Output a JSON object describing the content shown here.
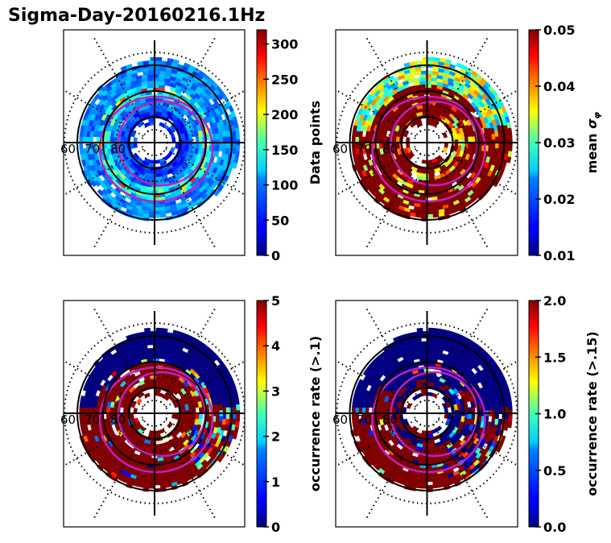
{
  "figure": {
    "title": "Sigma-Day-20160216.1Hz"
  },
  "chart_data": [
    {
      "type": "heatmap",
      "projection": "polar (magnetic latitude / MLT)",
      "panel": "top-left",
      "title": "",
      "colorbar_label": "Data points",
      "colormap": "jet",
      "clim": [
        0,
        320
      ],
      "colorbar_ticks": [
        "0",
        "50",
        "100",
        "150",
        "200",
        "250",
        "300"
      ],
      "colorbar_tick_values": [
        0,
        50,
        100,
        150,
        200,
        250,
        300
      ],
      "latitude_labels": [
        "60",
        "70",
        "80"
      ],
      "latitude_circles_solid": [
        60,
        70,
        80
      ],
      "dominant_description": "mostly blue/cyan (50-150) with yellow/orange ring near 70-75 lat",
      "typical_value_range": [
        20,
        260
      ]
    },
    {
      "type": "heatmap",
      "projection": "polar (magnetic latitude / MLT)",
      "panel": "top-right",
      "colorbar_label": "mean σ_φ",
      "colorbar_label_main": "mean ",
      "colorbar_label_symbol": "σ",
      "colorbar_label_sub": "φ",
      "colormap": "jet",
      "clim": [
        0.01,
        0.05
      ],
      "colorbar_ticks": [
        "0.01",
        "0.02",
        "0.03",
        "0.04",
        "0.05"
      ],
      "colorbar_tick_values": [
        0.01,
        0.02,
        0.03,
        0.04,
        0.05
      ],
      "latitude_labels": [
        "60",
        "70",
        "80"
      ],
      "dominant_description": "mostly saturated dark red (>=0.05) with cyan/yellow on dayside outer edge",
      "typical_value_range": [
        0.015,
        0.05
      ]
    },
    {
      "type": "heatmap",
      "projection": "polar (magnetic latitude / MLT)",
      "panel": "bottom-left",
      "colorbar_label": "occurrence rate (>.1)",
      "colormap": "jet",
      "clim": [
        0,
        5
      ],
      "colorbar_ticks": [
        "0",
        "1",
        "2",
        "3",
        "4",
        "5"
      ],
      "colorbar_tick_values": [
        0,
        1,
        2,
        3,
        4,
        5
      ],
      "latitude_labels": [
        "60",
        "70",
        "80"
      ],
      "dominant_description": "dark red (5) on nightside and auroral oval, dark blue (0) on dayside",
      "typical_value_range": [
        0,
        5
      ]
    },
    {
      "type": "heatmap",
      "projection": "polar (magnetic latitude / MLT)",
      "panel": "bottom-right",
      "colorbar_label": "occurrence rate (>.15)",
      "colormap": "jet",
      "clim": [
        0,
        2
      ],
      "colorbar_ticks": [
        "0.0",
        "0.5",
        "1.0",
        "1.5",
        "2.0"
      ],
      "colorbar_tick_values": [
        0,
        0.5,
        1.0,
        1.5,
        2.0
      ],
      "latitude_labels": [
        "60",
        "70",
        "80"
      ],
      "dominant_description": "dark red (2) in nightside oval, dark blue (0) elsewhere",
      "typical_value_range": [
        0,
        2
      ]
    }
  ],
  "overlay": {
    "oval_color": "#c020c0",
    "grid_color": "#000000"
  }
}
